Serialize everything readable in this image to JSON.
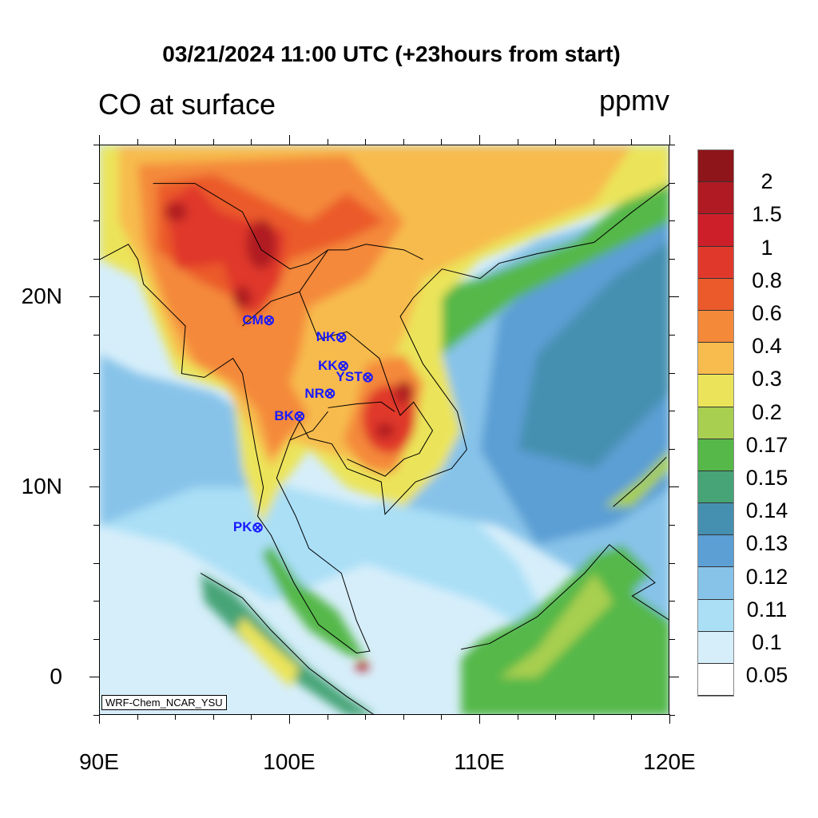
{
  "title": "03/21/2024 11:00 UTC (+23hours from start)",
  "left_string": "CO at surface",
  "right_string": "ppmv",
  "credit": "WRF-Chem_NCAR_YSU",
  "x_ticks": [
    {
      "lon": 90,
      "label": "90E"
    },
    {
      "lon": 100,
      "label": "100E"
    },
    {
      "lon": 110,
      "label": "110E"
    },
    {
      "lon": 120,
      "label": "120E"
    }
  ],
  "y_ticks": [
    {
      "lat": 20,
      "label": "20N"
    },
    {
      "lat": 10,
      "label": "10N"
    },
    {
      "lat": 0,
      "label": "0"
    }
  ],
  "extent": {
    "lon": [
      90,
      120
    ],
    "lat": [
      -2,
      28
    ]
  },
  "colorbar": {
    "labels": [
      "2",
      "1.5",
      "1",
      "0.8",
      "0.6",
      "0.4",
      "0.3",
      "0.2",
      "0.17",
      "0.15",
      "0.14",
      "0.13",
      "0.12",
      "0.11",
      "0.1",
      "0.05"
    ],
    "colors": [
      "#8e1519",
      "#b01a22",
      "#cc1f2a",
      "#e0392b",
      "#eb5a2a",
      "#f4893a",
      "#f7bb4e",
      "#ebe45a",
      "#a8cf50",
      "#55b848",
      "#47a477",
      "#4590b0",
      "#5b9fd4",
      "#87c3e9",
      "#aadff6",
      "#d6eefa",
      "#ffffff"
    ]
  },
  "stations": [
    {
      "name": "CM",
      "lon": 98.9,
      "lat": 18.8
    },
    {
      "name": "NK",
      "lon": 102.7,
      "lat": 17.9
    },
    {
      "name": "KK",
      "lon": 102.8,
      "lat": 16.4
    },
    {
      "name": "YST",
      "lon": 104.1,
      "lat": 15.8
    },
    {
      "name": "NR",
      "lon": 102.1,
      "lat": 14.95
    },
    {
      "name": "BK",
      "lon": 100.5,
      "lat": 13.75
    },
    {
      "name": "PK",
      "lon": 98.3,
      "lat": 7.9
    }
  ],
  "station_color": "#1a1aff"
}
